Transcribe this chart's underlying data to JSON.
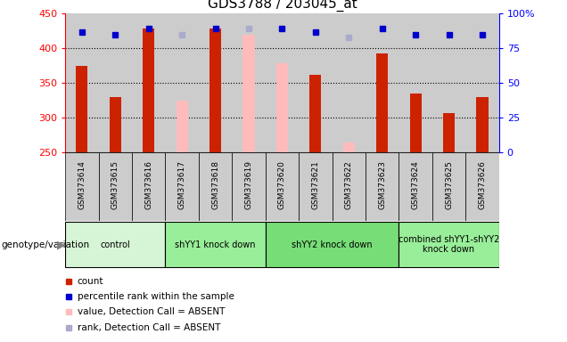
{
  "title": "GDS3788 / 203045_at",
  "samples": [
    "GSM373614",
    "GSM373615",
    "GSM373616",
    "GSM373617",
    "GSM373618",
    "GSM373619",
    "GSM373620",
    "GSM373621",
    "GSM373622",
    "GSM373623",
    "GSM373624",
    "GSM373625",
    "GSM373626"
  ],
  "count_values": [
    375,
    330,
    428,
    null,
    428,
    null,
    null,
    362,
    null,
    393,
    335,
    306,
    329
  ],
  "count_absent_values": [
    null,
    null,
    null,
    325,
    null,
    420,
    378,
    null,
    264,
    null,
    null,
    null,
    null
  ],
  "percentile_present": [
    424,
    420,
    428,
    null,
    428,
    null,
    428,
    424,
    null,
    428,
    420,
    420,
    420
  ],
  "percentile_absent": [
    null,
    null,
    null,
    420,
    null,
    428,
    null,
    null,
    416,
    null,
    null,
    null,
    null
  ],
  "ylim": [
    250,
    450
  ],
  "y_ticks": [
    250,
    300,
    350,
    400,
    450
  ],
  "y2_ticks_labels": [
    "0",
    "25",
    "50",
    "75",
    "100%"
  ],
  "y2_tick_positions": [
    250,
    300,
    350,
    400,
    450
  ],
  "groups": [
    {
      "label": "control",
      "start": 0,
      "end": 3,
      "color": "#d6f5d6"
    },
    {
      "label": "shYY1 knock down",
      "start": 3,
      "end": 6,
      "color": "#99ee99"
    },
    {
      "label": "shYY2 knock down",
      "start": 6,
      "end": 10,
      "color": "#77dd77"
    },
    {
      "label": "combined shYY1-shYY2\nknock down",
      "start": 10,
      "end": 13,
      "color": "#99ee99"
    }
  ],
  "bar_width": 0.35,
  "count_color": "#cc2200",
  "count_absent_color": "#ffbbbb",
  "percentile_color": "#0000cc",
  "percentile_absent_color": "#aaaacc",
  "bg_color": "#cccccc",
  "legend_items": [
    {
      "label": "count",
      "color": "#cc2200"
    },
    {
      "label": "percentile rank within the sample",
      "color": "#0000cc"
    },
    {
      "label": "value, Detection Call = ABSENT",
      "color": "#ffbbbb"
    },
    {
      "label": "rank, Detection Call = ABSENT",
      "color": "#aaaacc"
    }
  ]
}
